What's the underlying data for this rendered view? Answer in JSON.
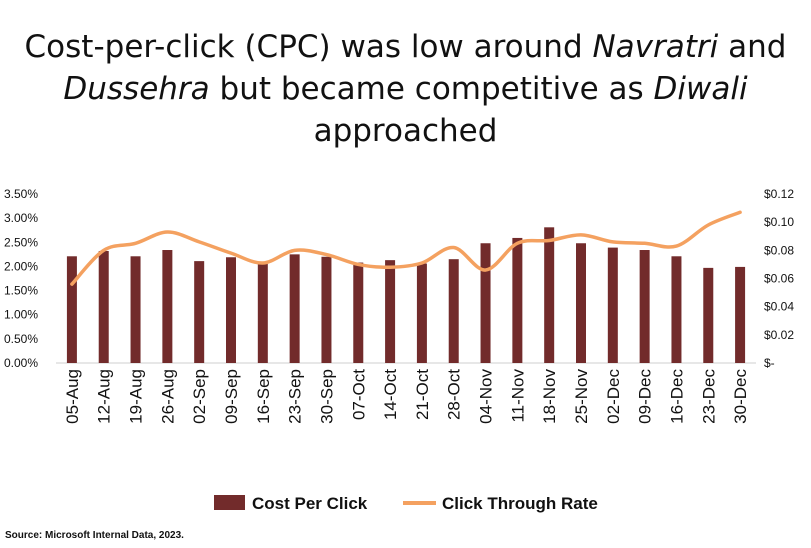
{
  "title": {
    "line1_a": "Cost-per-click (CPC) was low around ",
    "line1_b": "Navratri",
    "line1_c": " and",
    "line2_a": "Dussehra",
    "line2_b": " but became competitive as ",
    "line2_c": "Diwali",
    "line2_d": " approached"
  },
  "source": "Source: Microsoft Internal Data, 2023.",
  "colors": {
    "bars": "#722b2b",
    "line": "#f4a160",
    "axis": "#cfcfcf",
    "text": "#111111"
  },
  "chart_data": {
    "type": "bar",
    "categories": [
      "05-Aug",
      "12-Aug",
      "19-Aug",
      "26-Aug",
      "02-Sep",
      "09-Sep",
      "16-Sep",
      "23-Sep",
      "30-Sep",
      "07-Oct",
      "14-Oct",
      "21-Oct",
      "28-Oct",
      "04-Nov",
      "11-Nov",
      "18-Nov",
      "25-Nov",
      "02-Dec",
      "09-Dec",
      "16-Dec",
      "23-Dec",
      "30-Dec"
    ],
    "left_axis": {
      "ylim": [
        0,
        0.035
      ],
      "ticks": [
        "0.00%",
        "0.50%",
        "1.00%",
        "1.50%",
        "2.00%",
        "2.50%",
        "3.00%",
        "3.50%"
      ]
    },
    "right_axis": {
      "ylim": [
        0,
        0.12
      ],
      "ticks": [
        "$-",
        "$0.02",
        "$0.04",
        "$0.06",
        "$0.08",
        "$0.10",
        "$0.12"
      ]
    },
    "series": [
      {
        "name": "Cost Per Click",
        "type": "bar",
        "axis": "left",
        "values": [
          0.0221,
          0.0232,
          0.0221,
          0.0234,
          0.0211,
          0.0219,
          0.0205,
          0.0225,
          0.022,
          0.0208,
          0.0213,
          0.0206,
          0.0215,
          0.0248,
          0.0259,
          0.0281,
          0.0248,
          0.0239,
          0.0234,
          0.0221,
          0.0197,
          0.0199
        ]
      },
      {
        "name": "Click Through Rate",
        "type": "line",
        "axis": "right",
        "values": [
          0.056,
          0.08,
          0.085,
          0.093,
          0.086,
          0.078,
          0.071,
          0.08,
          0.077,
          0.07,
          0.068,
          0.071,
          0.082,
          0.066,
          0.085,
          0.087,
          0.091,
          0.086,
          0.085,
          0.083,
          0.098,
          0.107
        ]
      }
    ],
    "grid": false,
    "legend": "bottom"
  }
}
